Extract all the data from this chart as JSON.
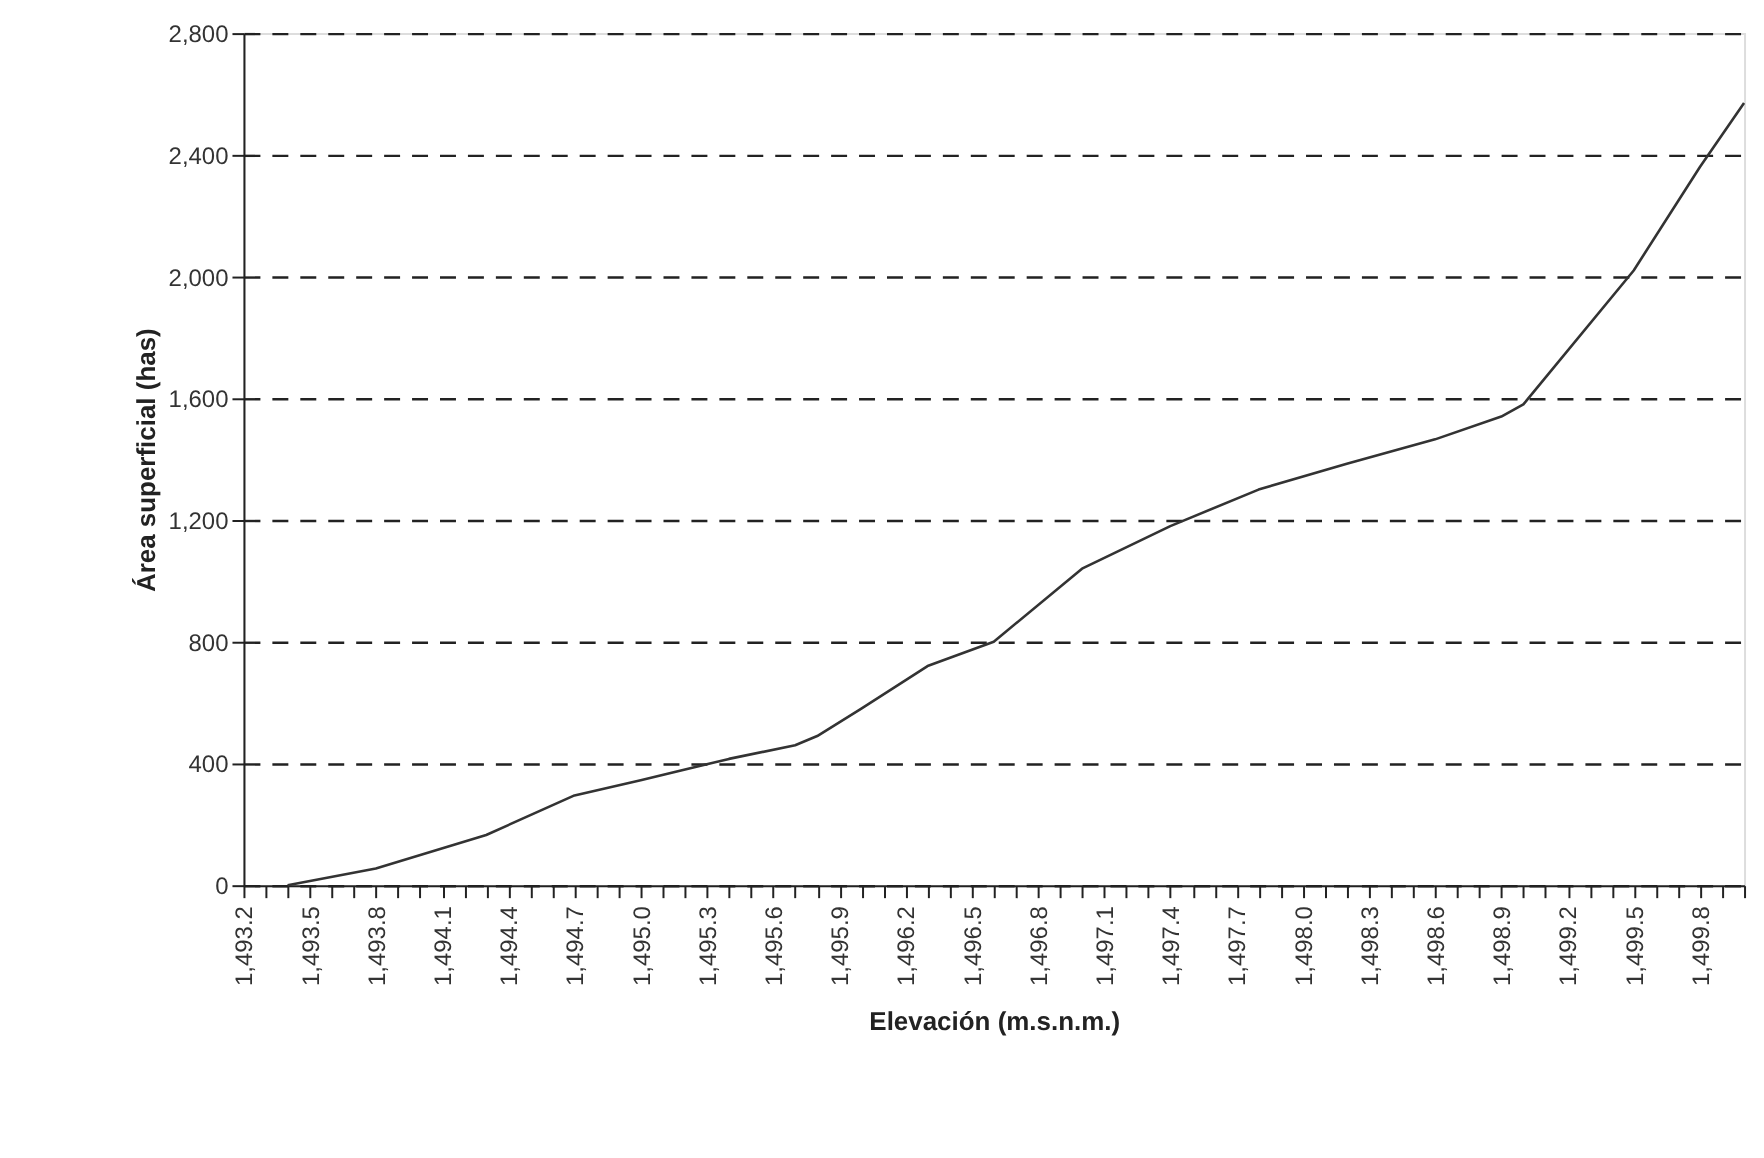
{
  "chart_data": {
    "type": "line",
    "xlabel": "Elevación (m.s.n.m.)",
    "ylabel": "Área superficial (has)",
    "x": [
      1493.4,
      1493.8,
      1494.3,
      1494.7,
      1495.0,
      1495.4,
      1495.7,
      1495.8,
      1496.0,
      1496.3,
      1496.6,
      1497.0,
      1497.4,
      1497.8,
      1498.2,
      1498.6,
      1498.9,
      1499.0,
      1499.5,
      1499.8,
      1500.0
    ],
    "series": [
      {
        "color": "#333333",
        "values": [
          0,
          55,
          165,
          295,
          345,
          415,
          460,
          490,
          580,
          720,
          800,
          1040,
          1180,
          1300,
          1385,
          1465,
          1540,
          1580,
          2020,
          2360,
          2570
        ]
      }
    ],
    "xlim": [
      1493.2,
      1500.0
    ],
    "xticks": [
      {
        "value": 1493.2,
        "label": "1,493.2"
      },
      {
        "value": 1493.3,
        "label": null
      },
      {
        "value": 1493.4,
        "label": null
      },
      {
        "value": 1493.5,
        "label": "1,493.5"
      },
      {
        "value": 1493.6,
        "label": null
      },
      {
        "value": 1493.7,
        "label": null
      },
      {
        "value": 1493.8,
        "label": "1,493.8"
      },
      {
        "value": 1493.9,
        "label": null
      },
      {
        "value": 1494.0,
        "label": null
      },
      {
        "value": 1494.1,
        "label": "1,494.1"
      },
      {
        "value": 1494.2,
        "label": null
      },
      {
        "value": 1494.3,
        "label": null
      },
      {
        "value": 1494.4,
        "label": "1,494.4"
      },
      {
        "value": 1494.5,
        "label": null
      },
      {
        "value": 1494.6,
        "label": null
      },
      {
        "value": 1494.7,
        "label": "1,494.7"
      },
      {
        "value": 1494.8,
        "label": null
      },
      {
        "value": 1494.9,
        "label": null
      },
      {
        "value": 1495.0,
        "label": "1,495.0"
      },
      {
        "value": 1495.1,
        "label": null
      },
      {
        "value": 1495.2,
        "label": null
      },
      {
        "value": 1495.3,
        "label": "1,495.3"
      },
      {
        "value": 1495.4,
        "label": null
      },
      {
        "value": 1495.5,
        "label": null
      },
      {
        "value": 1495.6,
        "label": "1,495.6"
      },
      {
        "value": 1495.7,
        "label": null
      },
      {
        "value": 1495.8,
        "label": null
      },
      {
        "value": 1495.9,
        "label": "1,495.9"
      },
      {
        "value": 1496.0,
        "label": null
      },
      {
        "value": 1496.1,
        "label": null
      },
      {
        "value": 1496.2,
        "label": "1,496.2"
      },
      {
        "value": 1496.3,
        "label": null
      },
      {
        "value": 1496.4,
        "label": null
      },
      {
        "value": 1496.5,
        "label": "1,496.5"
      },
      {
        "value": 1496.6,
        "label": null
      },
      {
        "value": 1496.7,
        "label": null
      },
      {
        "value": 1496.8,
        "label": "1,496.8"
      },
      {
        "value": 1496.9,
        "label": null
      },
      {
        "value": 1497.0,
        "label": null
      },
      {
        "value": 1497.1,
        "label": "1,497.1"
      },
      {
        "value": 1497.2,
        "label": null
      },
      {
        "value": 1497.3,
        "label": null
      },
      {
        "value": 1497.4,
        "label": "1,497.4"
      },
      {
        "value": 1497.5,
        "label": null
      },
      {
        "value": 1497.6,
        "label": null
      },
      {
        "value": 1497.7,
        "label": "1,497.7"
      },
      {
        "value": 1497.8,
        "label": null
      },
      {
        "value": 1497.9,
        "label": null
      },
      {
        "value": 1498.0,
        "label": "1,498.0"
      },
      {
        "value": 1498.1,
        "label": null
      },
      {
        "value": 1498.2,
        "label": null
      },
      {
        "value": 1498.3,
        "label": "1,498.3"
      },
      {
        "value": 1498.4,
        "label": null
      },
      {
        "value": 1498.5,
        "label": null
      },
      {
        "value": 1498.6,
        "label": "1,498.6"
      },
      {
        "value": 1498.7,
        "label": null
      },
      {
        "value": 1498.8,
        "label": null
      },
      {
        "value": 1498.9,
        "label": "1,498.9"
      },
      {
        "value": 1499.0,
        "label": null
      },
      {
        "value": 1499.1,
        "label": null
      },
      {
        "value": 1499.2,
        "label": "1,499.2"
      },
      {
        "value": 1499.3,
        "label": null
      },
      {
        "value": 1499.4,
        "label": null
      },
      {
        "value": 1499.5,
        "label": "1,499.5"
      },
      {
        "value": 1499.6,
        "label": null
      },
      {
        "value": 1499.7,
        "label": null
      },
      {
        "value": 1499.8,
        "label": "1,499.8"
      },
      {
        "value": 1499.9,
        "label": null
      },
      {
        "value": 1500.0,
        "label": null
      }
    ],
    "ylim": [
      0,
      2800
    ],
    "yticks": [
      0,
      400,
      {
        "value": 800,
        "label": "800"
      },
      {
        "value": 1200,
        "label": "1,200"
      },
      {
        "value": 1600,
        "label": "1,600"
      },
      {
        "value": 2000,
        "label": "2,000"
      },
      {
        "value": 2400,
        "label": "2,400"
      },
      {
        "value": 2800,
        "label": "2,800"
      }
    ],
    "grid": "y",
    "marker": "none",
    "line_style": "solid"
  }
}
